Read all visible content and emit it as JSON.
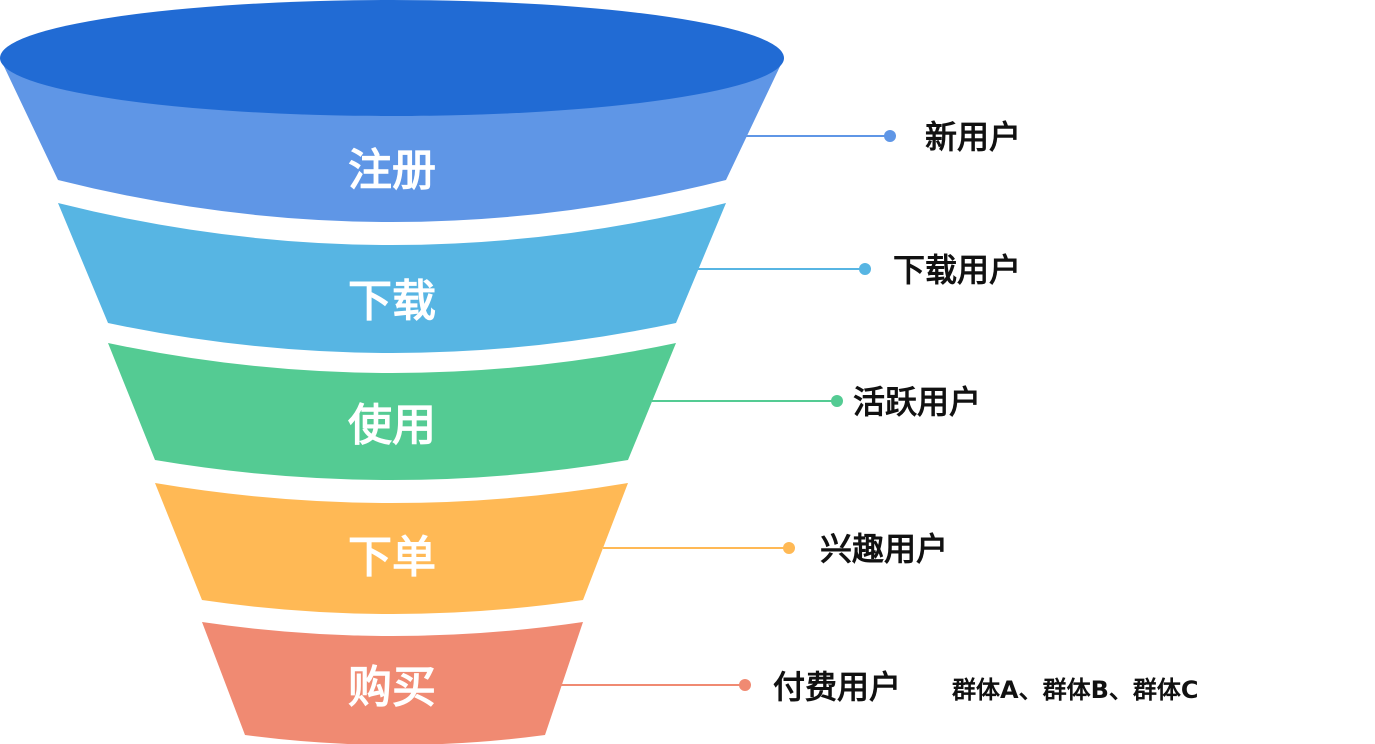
{
  "stages": [
    {
      "name": "注册",
      "label": "新用户",
      "color": "#5f96e6"
    },
    {
      "name": "下载",
      "label": "下载用户",
      "color": "#57b5e3"
    },
    {
      "name": "使用",
      "label": "活跃用户",
      "color": "#54cb93"
    },
    {
      "name": "下单",
      "label": "兴趣用户",
      "color": "#ffb955"
    },
    {
      "name": "购买",
      "label": "付费用户",
      "color": "#f08a72"
    }
  ],
  "top_color": "#216bd4",
  "groups_note": "群体A、群体B、群体C"
}
